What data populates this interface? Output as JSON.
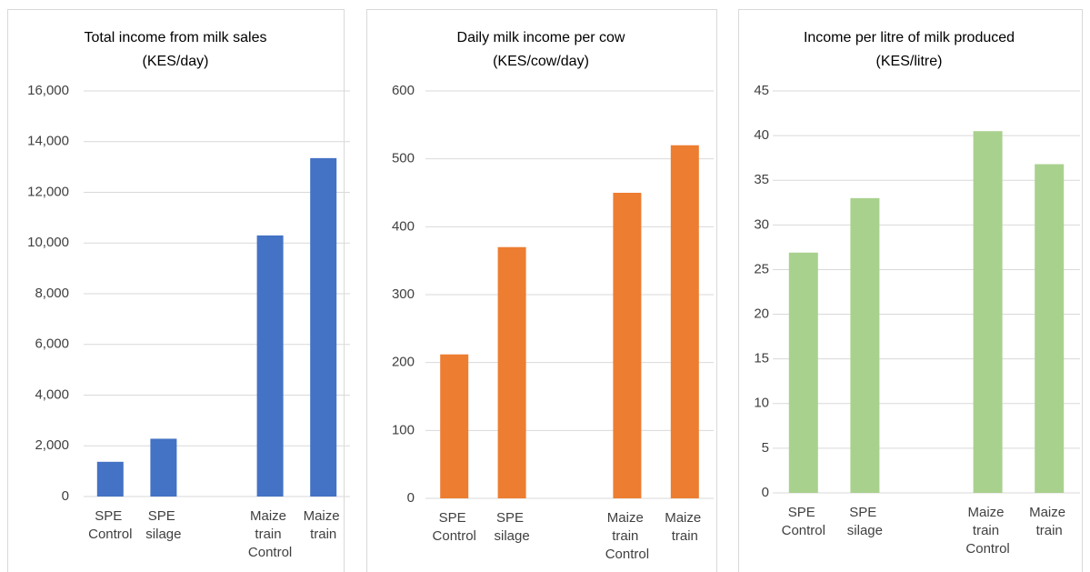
{
  "chart_data": [
    {
      "type": "bar",
      "title": "Total income from milk sales",
      "subtitle": "(KES/day)",
      "categories": [
        "SPE Control",
        "SPE silage",
        null,
        "Maize train Control",
        "Maize train"
      ],
      "values": [
        1370,
        2280,
        null,
        10300,
        13350
      ],
      "color": "#4472c4",
      "ylim": [
        0,
        16000
      ],
      "yticks": [
        0,
        {
          "value": 2000,
          "label": "2,000"
        },
        {
          "value": 4000,
          "label": "4,000"
        },
        {
          "value": 6000,
          "label": "6,000"
        },
        {
          "value": 8000,
          "label": "8,000"
        },
        {
          "value": 10000,
          "label": "10,000"
        },
        {
          "value": 12000,
          "label": "12,000"
        },
        {
          "value": 14000,
          "label": "14,000"
        },
        {
          "value": 16000,
          "label": "16,000"
        }
      ],
      "grid": true
    },
    {
      "type": "bar",
      "title": "Daily milk income per cow",
      "subtitle": "(KES/cow/day)",
      "categories": [
        "SPE Control",
        "SPE silage",
        null,
        "Maize train Control",
        "Maize train"
      ],
      "values": [
        212,
        370,
        null,
        450,
        520
      ],
      "color": "#ed7d31",
      "ylim": [
        0,
        600
      ],
      "yticks": [
        0,
        100,
        200,
        300,
        400,
        500,
        600
      ],
      "grid": true
    },
    {
      "type": "bar",
      "title": "Income per litre of milk produced",
      "subtitle": "(KES/litre)",
      "categories": [
        "SPE Control",
        "SPE silage",
        null,
        "Maize train Control",
        "Maize train"
      ],
      "values": [
        26.9,
        33,
        null,
        40.5,
        36.8
      ],
      "color": "#a9d18e",
      "ylim": [
        0,
        45
      ],
      "yticks": [
        0,
        5,
        10,
        15,
        20,
        25,
        30,
        35,
        40,
        45
      ],
      "grid": true
    }
  ]
}
